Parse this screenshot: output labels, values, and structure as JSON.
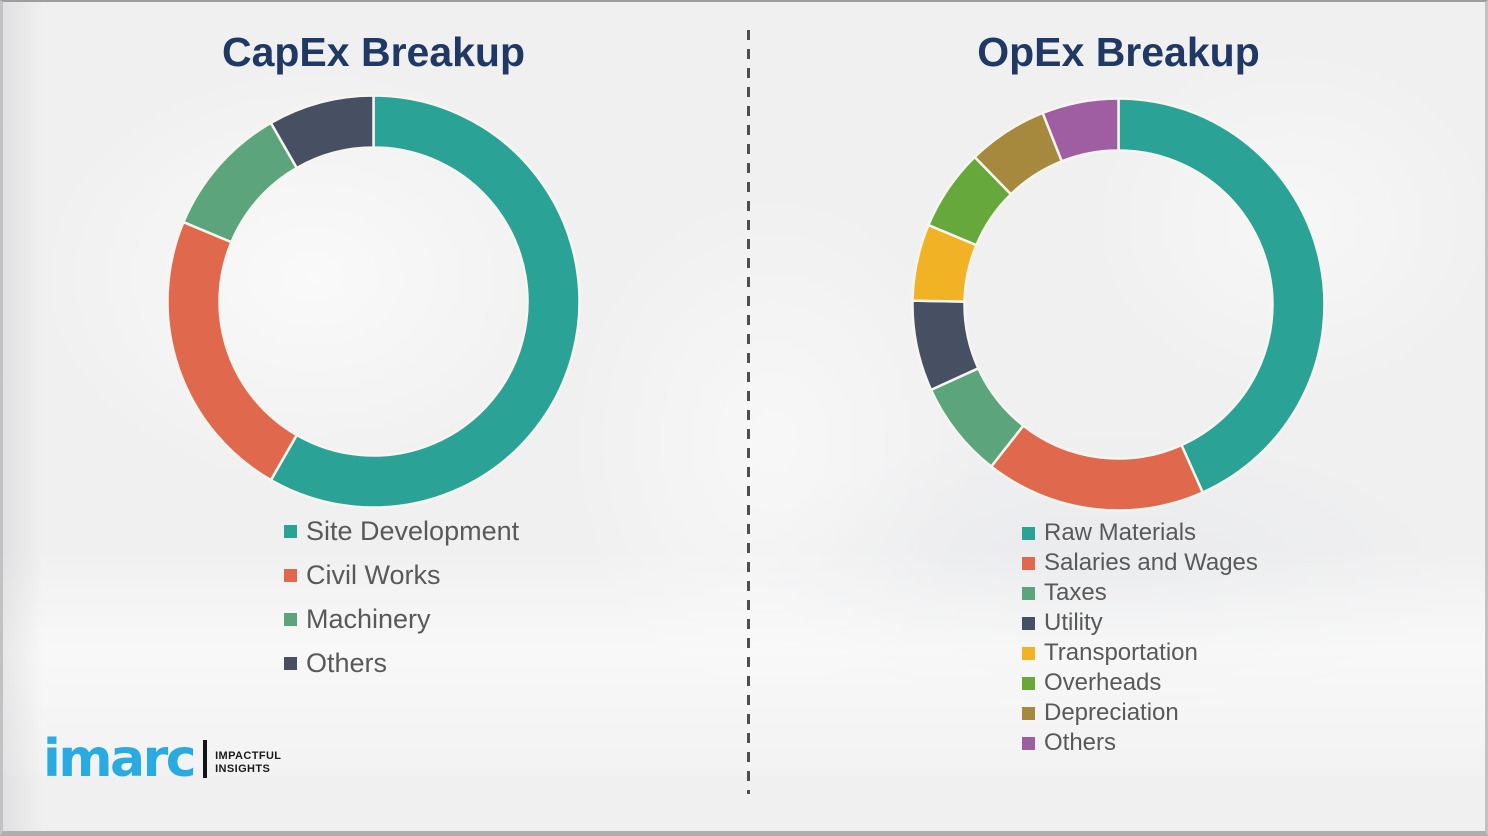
{
  "chart_data": [
    {
      "type": "pie",
      "subtype": "donut",
      "title": "CapEx Breakup",
      "labels": [
        "Site Development",
        "Civil Works",
        "Machinery",
        "Others"
      ],
      "values": [
        58.3,
        23.0,
        10.4,
        8.3
      ],
      "values_note": "percent, estimated from arc angles (no data labels shown)",
      "colors": [
        "#2AA396",
        "#E0684C",
        "#5BA47C",
        "#474F63"
      ],
      "start_angle_deg": 0,
      "direction": "clockwise",
      "legend_position": "below-left"
    },
    {
      "type": "pie",
      "subtype": "donut",
      "title": "OpEx Breakup",
      "labels": [
        "Raw Materials",
        "Salaries and Wages",
        "Taxes",
        "Utility",
        "Transportation",
        "Overheads",
        "Depreciation",
        "Others"
      ],
      "values": [
        43.3,
        17.3,
        7.6,
        7.1,
        6.0,
        6.4,
        6.3,
        6.0
      ],
      "values_note": "percent, estimated from arc angles (no data labels shown)",
      "colors": [
        "#2AA396",
        "#E0684C",
        "#5BA47C",
        "#474F63",
        "#F2B226",
        "#67A83C",
        "#A7893E",
        "#9F5EA2"
      ],
      "start_angle_deg": 0,
      "direction": "clockwise",
      "legend_position": "below-left"
    }
  ],
  "logo": {
    "brand": "imarc",
    "tagline1": "IMPACTFUL",
    "tagline2": "INSIGHTS"
  },
  "theme": {
    "title_color": "#1F3864",
    "legend_text_color": "#595959",
    "logo_blue": "#29ABE2",
    "logo_tagline_color": "#1A1A1A",
    "divider_color": "#4E4E4E",
    "background": "#F0F0F1",
    "segment_gap_color": "#F6F5F0"
  }
}
